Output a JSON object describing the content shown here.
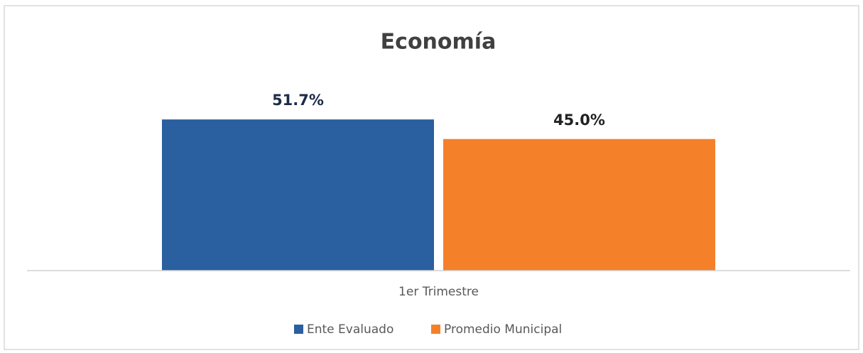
{
  "chart_data": {
    "type": "bar",
    "title": "Economía",
    "categories": [
      "1er Trimestre"
    ],
    "series": [
      {
        "name": "Ente Evaluado",
        "color": "#2a5fa0",
        "values": [
          51.7
        ],
        "value_labels": [
          "51.7%"
        ]
      },
      {
        "name": "Promedio Municipal",
        "color": "#f5802a",
        "values": [
          45.0
        ],
        "value_labels": [
          "45.0%"
        ]
      }
    ],
    "ylim": [
      0,
      60
    ],
    "legend": "bottom"
  }
}
